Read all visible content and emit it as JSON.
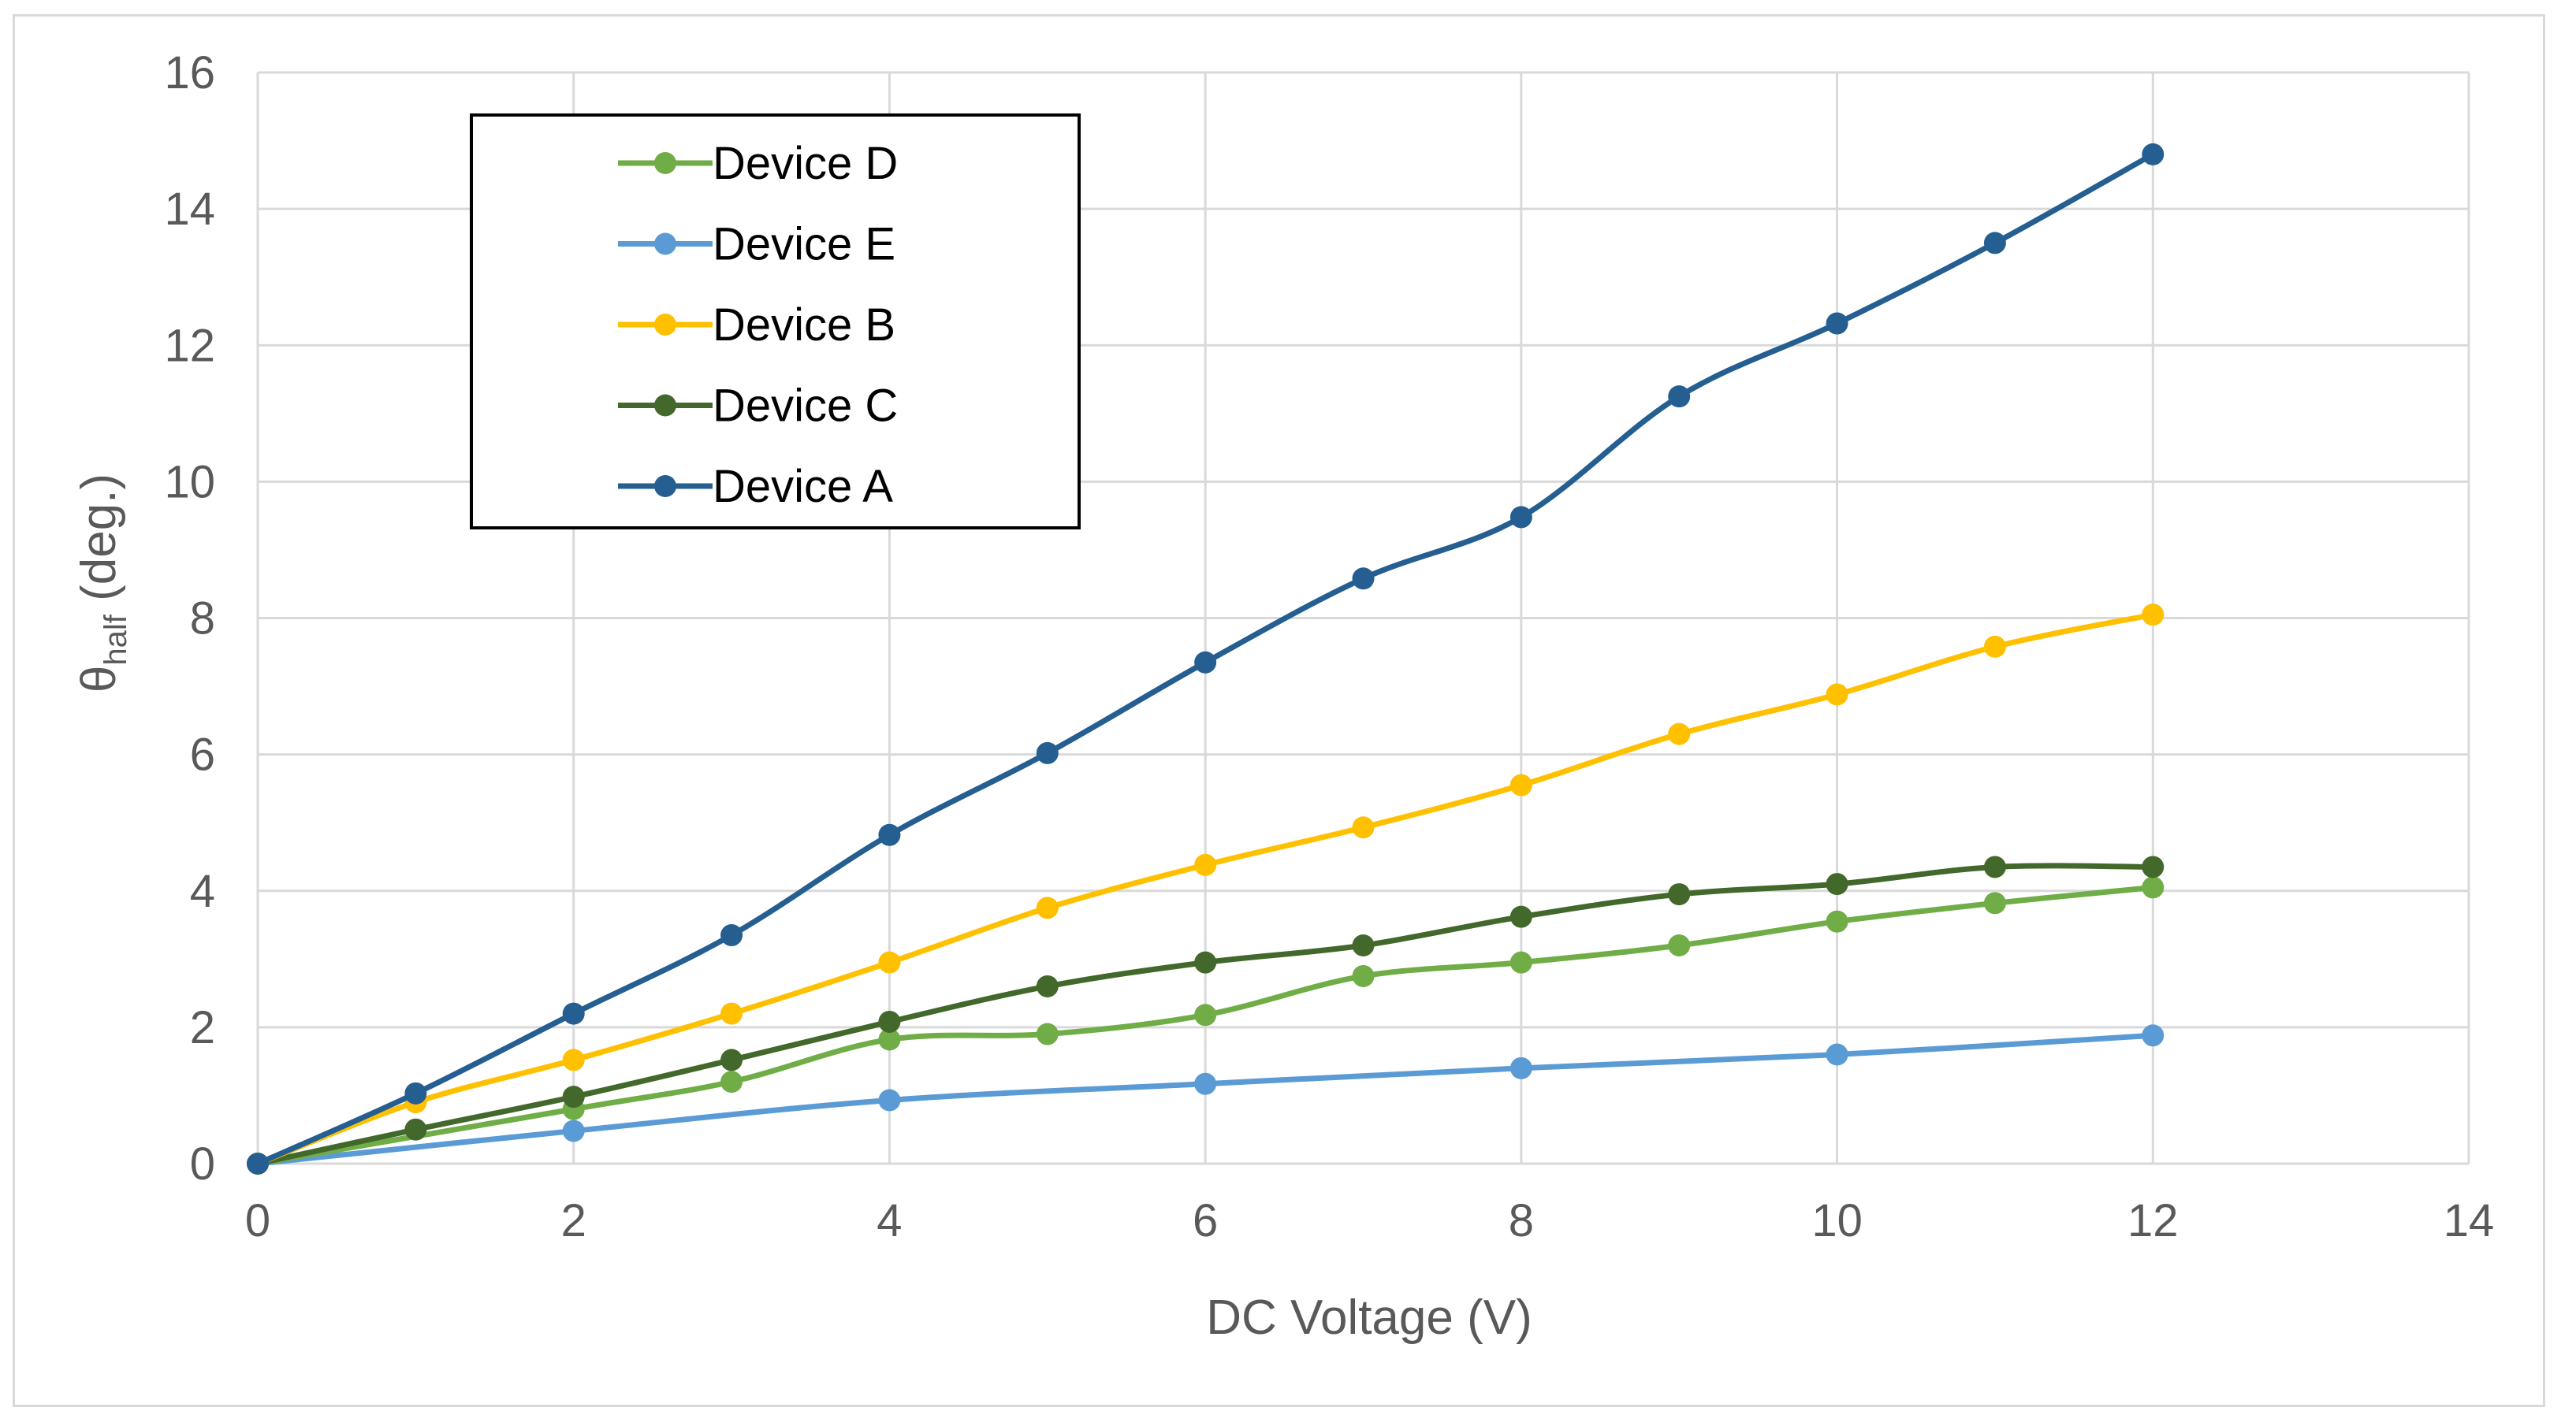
{
  "chart_data": {
    "type": "line",
    "title": "",
    "xlabel": "DC Voltage (V)",
    "ylabel": {
      "main": "θ",
      "sub": "half",
      "suffix": " (deg.)"
    },
    "xlim": [
      0,
      14
    ],
    "ylim": [
      0,
      16
    ],
    "xticks": [
      0,
      2,
      4,
      6,
      8,
      10,
      12,
      14
    ],
    "yticks": [
      0,
      2,
      4,
      6,
      8,
      10,
      12,
      14,
      16
    ],
    "grid": true,
    "legend_position": "top-left",
    "legend_order": [
      "Device D",
      "Device E",
      "Device B",
      "Device C",
      "Device A"
    ],
    "series": [
      {
        "name": "Device E",
        "color": "#5b9bd5",
        "x": [
          0,
          2,
          4,
          6,
          8,
          10,
          12
        ],
        "y": [
          0,
          0.48,
          0.93,
          1.17,
          1.4,
          1.6,
          1.88
        ]
      },
      {
        "name": "Device D",
        "color": "#70ad47",
        "x": [
          0,
          2,
          3,
          4,
          5,
          6,
          7,
          8,
          9,
          10,
          11,
          12
        ],
        "y": [
          0,
          0.8,
          1.2,
          1.82,
          1.9,
          2.18,
          2.75,
          2.95,
          3.2,
          3.55,
          3.82,
          4.05
        ]
      },
      {
        "name": "Device C",
        "color": "#43682b",
        "x": [
          0,
          1,
          2,
          3,
          4,
          5,
          6,
          7,
          8,
          9,
          10,
          11,
          12
        ],
        "y": [
          0,
          0.5,
          0.98,
          1.52,
          2.08,
          2.6,
          2.95,
          3.2,
          3.62,
          3.95,
          4.1,
          4.35,
          4.35
        ]
      },
      {
        "name": "Device B",
        "color": "#ffc000",
        "x": [
          0,
          1,
          2,
          3,
          4,
          5,
          6,
          7,
          8,
          9,
          10,
          11,
          12
        ],
        "y": [
          0,
          0.9,
          1.52,
          2.2,
          2.95,
          3.75,
          4.38,
          4.93,
          5.55,
          6.3,
          6.88,
          7.58,
          8.05
        ]
      },
      {
        "name": "Device A",
        "color": "#255e91",
        "x": [
          0,
          1,
          2,
          3,
          4,
          5,
          6,
          7,
          8,
          9,
          10,
          11,
          12
        ],
        "y": [
          0,
          1.03,
          2.2,
          3.35,
          4.82,
          6.02,
          7.35,
          8.58,
          9.48,
          11.25,
          12.32,
          13.5,
          14.8
        ]
      }
    ]
  }
}
